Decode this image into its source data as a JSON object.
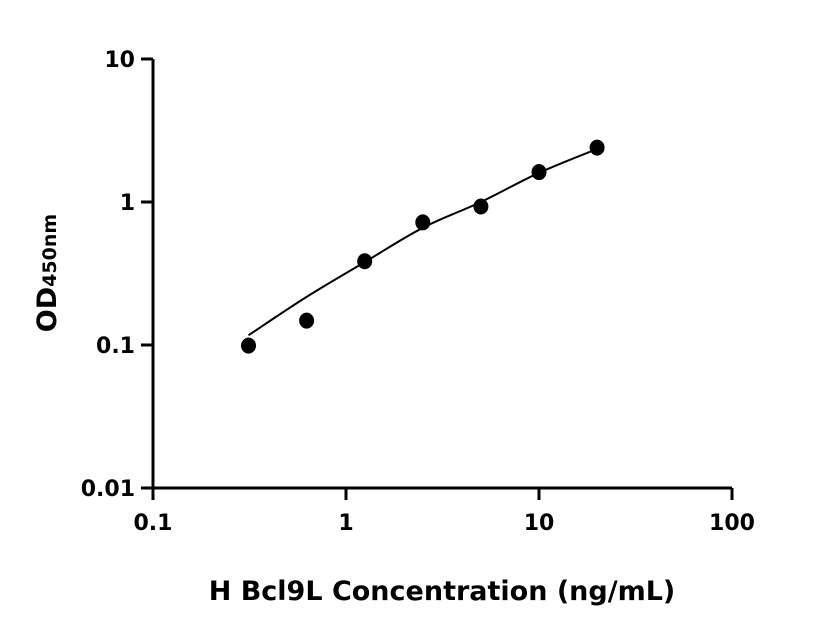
{
  "chart_data": {
    "type": "scatter",
    "title": "",
    "xlabel": "H Bcl9L Concentration (ng/mL)",
    "ylabel": "OD",
    "ylabel_subscript": "450nm",
    "xscale": "log",
    "yscale": "log",
    "xlim": [
      0.1,
      100
    ],
    "ylim": [
      0.01,
      10
    ],
    "xticks": [
      0.1,
      1,
      10,
      100
    ],
    "xtick_labels": [
      "0.1",
      "1",
      "10",
      "100"
    ],
    "yticks": [
      0.01,
      0.1,
      1,
      10
    ],
    "ytick_labels": [
      "0.01",
      "0.1",
      "1",
      "10"
    ],
    "grid": false,
    "points": {
      "x": [
        0.3125,
        0.625,
        1.25,
        2.5,
        5,
        10,
        20
      ],
      "y": [
        0.099,
        0.148,
        0.385,
        0.72,
        0.93,
        1.62,
        2.4
      ]
    },
    "fit_curve": {
      "x": [
        0.3125,
        0.625,
        1.25,
        2.5,
        5,
        10,
        20
      ],
      "y": [
        0.117,
        0.217,
        0.38,
        0.66,
        1.0,
        1.6,
        2.35
      ]
    },
    "color": "#000000"
  }
}
